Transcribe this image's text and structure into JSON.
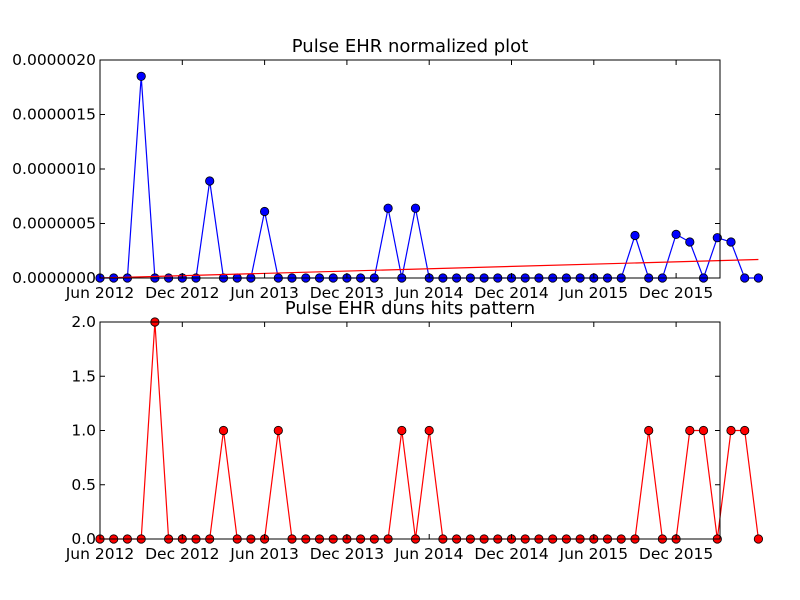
{
  "chart_data": [
    {
      "type": "line",
      "title": "Pulse EHR normalized plot",
      "xlabel": "",
      "ylabel": "",
      "ylim": [
        0,
        2e-06
      ],
      "yticks": [
        "0.0000000",
        "0.0000005",
        "0.0000010",
        "0.0000015",
        "0.0000020"
      ],
      "xtick_labels": [
        "Jun 2012",
        "Dec 2012",
        "Jun 2013",
        "Dec 2013",
        "Jun 2014",
        "Dec 2014",
        "Jun 2015",
        "Dec 2015"
      ],
      "grid": false,
      "series": [
        {
          "color": "#0000ff",
          "marker": "circle",
          "x": [
            "2012-06",
            "2012-07",
            "2012-08",
            "2012-09",
            "2012-10",
            "2012-11",
            "2012-12",
            "2013-01",
            "2013-02",
            "2013-03",
            "2013-04",
            "2013-05",
            "2013-06",
            "2013-07",
            "2013-08",
            "2013-09",
            "2013-10",
            "2013-11",
            "2013-12",
            "2014-01",
            "2014-02",
            "2014-03",
            "2014-04",
            "2014-05",
            "2014-06",
            "2014-07",
            "2014-08",
            "2014-09",
            "2014-10",
            "2014-11",
            "2014-12",
            "2015-01",
            "2015-02",
            "2015-03",
            "2015-04",
            "2015-05",
            "2015-06",
            "2015-07",
            "2015-08",
            "2015-09",
            "2015-10",
            "2015-11",
            "2015-12",
            "2016-01",
            "2016-02",
            "2016-03",
            "2016-04",
            "2016-05",
            "2016-06"
          ],
          "values": [
            0,
            0,
            0,
            1.85e-06,
            0,
            0,
            0,
            0,
            8.9e-07,
            0,
            0,
            0,
            6.1e-07,
            0,
            0,
            0,
            0,
            0,
            0,
            0,
            0,
            6.4e-07,
            0,
            6.4e-07,
            0,
            0,
            0,
            0,
            0,
            0,
            0,
            0,
            0,
            0,
            0,
            0,
            0,
            0,
            0,
            3.9e-07,
            0,
            0,
            4e-07,
            3.3e-07,
            0,
            3.7e-07,
            3.3e-07,
            0,
            0
          ]
        },
        {
          "color": "#ff0000",
          "marker": "none",
          "trend": true,
          "x": [
            "2012-06",
            "2016-06"
          ],
          "values": [
            0,
            1.7e-07
          ]
        }
      ]
    },
    {
      "type": "line",
      "title": "Pulse EHR duns hits pattern",
      "xlabel": "",
      "ylabel": "",
      "ylim": [
        0,
        2
      ],
      "yticks": [
        "0.0",
        "0.5",
        "1.0",
        "1.5",
        "2.0"
      ],
      "xtick_labels": [
        "Jun 2012",
        "Dec 2012",
        "Jun 2013",
        "Dec 2013",
        "Jun 2014",
        "Dec 2014",
        "Jun 2015",
        "Dec 2015"
      ],
      "grid": false,
      "series": [
        {
          "color": "#ff0000",
          "marker": "circle",
          "x": [
            "2012-06",
            "2012-07",
            "2012-08",
            "2012-09",
            "2012-10",
            "2012-11",
            "2012-12",
            "2013-01",
            "2013-02",
            "2013-03",
            "2013-04",
            "2013-05",
            "2013-06",
            "2013-07",
            "2013-08",
            "2013-09",
            "2013-10",
            "2013-11",
            "2013-12",
            "2014-01",
            "2014-02",
            "2014-03",
            "2014-04",
            "2014-05",
            "2014-06",
            "2014-07",
            "2014-08",
            "2014-09",
            "2014-10",
            "2014-11",
            "2014-12",
            "2015-01",
            "2015-02",
            "2015-03",
            "2015-04",
            "2015-05",
            "2015-06",
            "2015-07",
            "2015-08",
            "2015-09",
            "2015-10",
            "2015-11",
            "2015-12",
            "2016-01",
            "2016-02",
            "2016-03",
            "2016-04",
            "2016-05",
            "2016-06"
          ],
          "values": [
            0,
            0,
            0,
            0,
            2,
            0,
            0,
            0,
            0,
            1,
            0,
            0,
            0,
            1,
            0,
            0,
            0,
            0,
            0,
            0,
            0,
            0,
            1,
            0,
            1,
            0,
            0,
            0,
            0,
            0,
            0,
            0,
            0,
            0,
            0,
            0,
            0,
            0,
            0,
            0,
            1,
            0,
            0,
            1,
            1,
            0,
            1,
            1,
            0
          ]
        }
      ]
    }
  ]
}
